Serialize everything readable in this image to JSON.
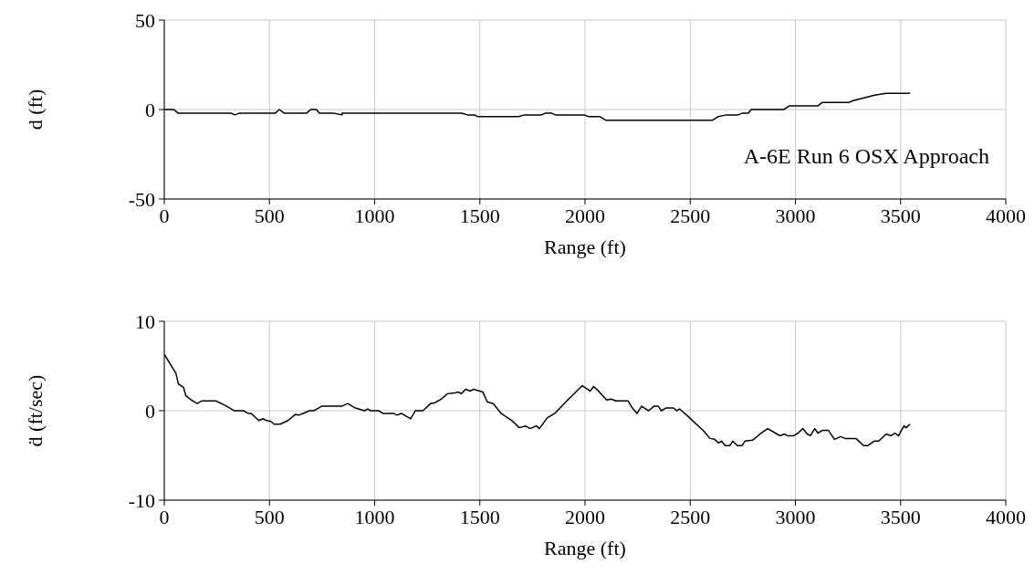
{
  "chart_data": [
    {
      "type": "line",
      "xlabel": "Range (ft)",
      "ylabel": "d (ft)",
      "annotations": [
        "A-6E Run 6 OSX Approach"
      ],
      "xlim": [
        0,
        4000
      ],
      "xticks": [
        0,
        500,
        1000,
        1500,
        2000,
        2500,
        3000,
        3500,
        4000
      ],
      "ylim": [
        -50,
        50
      ],
      "yticks": [
        -50,
        0,
        50
      ],
      "grid": true,
      "series": [
        {
          "color": "#000000",
          "x": [
            0,
            46,
            65,
            317,
            336,
            357,
            528,
            547,
            569,
            677,
            696,
            723,
            737,
            804,
            845,
            845,
            1414,
            1441,
            1476,
            1489,
            1684,
            1711,
            1793,
            1812,
            1839,
            1860,
            1996,
            2017,
            2072,
            2099,
            2605,
            2632,
            2673,
            2727,
            2749,
            2776,
            2790,
            2944,
            2971,
            3106,
            3128,
            3255,
            3274,
            3309,
            3377,
            3431,
            3545
          ],
          "values": [
            0,
            0,
            -2,
            -2,
            -3,
            -2,
            -2,
            0,
            -2,
            -2,
            0,
            0,
            -2,
            -2,
            -3,
            -2,
            -2,
            -3,
            -3,
            -4,
            -4,
            -3,
            -3,
            -2,
            -2,
            -3,
            -3,
            -4,
            -4,
            -6,
            -6,
            -4,
            -3,
            -3,
            -2,
            -2,
            0,
            0,
            2,
            2,
            4,
            4,
            5,
            6,
            8,
            9,
            9
          ]
        }
      ]
    },
    {
      "type": "line",
      "xlabel": "Range (ft)",
      "ylabel": "ḋ (ft/sec)",
      "xlim": [
        0,
        4000
      ],
      "xticks": [
        0,
        500,
        1000,
        1500,
        2000,
        2500,
        3000,
        3500,
        4000
      ],
      "ylim": [
        -10,
        10
      ],
      "yticks": [
        -10,
        0,
        10
      ],
      "grid": true,
      "series": [
        {
          "color": "#000000",
          "x": [
            0,
            55,
            67,
            92,
            102,
            128,
            157,
            179,
            245,
            289,
            332,
            376,
            398,
            413,
            449,
            470,
            486,
            507,
            522,
            551,
            588,
            624,
            639,
            660,
            690,
            711,
            748,
            843,
            872,
            908,
            952,
            967,
            981,
            1018,
            1040,
            1091,
            1105,
            1127,
            1171,
            1193,
            1229,
            1266,
            1287,
            1317,
            1346,
            1382,
            1397,
            1411,
            1433,
            1455,
            1470,
            1514,
            1535,
            1564,
            1601,
            1652,
            1688,
            1717,
            1739,
            1769,
            1783,
            1820,
            1856,
            1922,
            1987,
            2024,
            2041,
            2068,
            2103,
            2124,
            2146,
            2204,
            2225,
            2247,
            2269,
            2302,
            2327,
            2348,
            2363,
            2384,
            2421,
            2435,
            2449,
            2493,
            2565,
            2594,
            2616,
            2634,
            2649,
            2666,
            2688,
            2702,
            2724,
            2746,
            2760,
            2796,
            2832,
            2868,
            2905,
            2926,
            2948,
            2962,
            2991,
            3013,
            3035,
            3056,
            3071,
            3092,
            3107,
            3128,
            3157,
            3186,
            3215,
            3237,
            3288,
            3324,
            3345,
            3374,
            3396,
            3432,
            3454,
            3473,
            3490,
            3516,
            3526,
            3545
          ],
          "values": [
            6.3,
            4.2,
            3.0,
            2.6,
            1.7,
            1.2,
            0.8,
            1.1,
            1.1,
            0.6,
            0,
            0,
            -0.3,
            -0.3,
            -1.1,
            -0.9,
            -1.1,
            -1.2,
            -1.5,
            -1.5,
            -1.1,
            -0.4,
            -0.5,
            -0.3,
            0,
            0,
            0.5,
            0.5,
            0.8,
            0.3,
            0,
            0.2,
            0,
            0,
            -0.3,
            -0.3,
            -0.5,
            -0.3,
            -0.9,
            0,
            0,
            0.8,
            0.9,
            1.3,
            1.9,
            2.0,
            2.1,
            1.9,
            2.4,
            2.2,
            2.4,
            2.1,
            1.0,
            0.8,
            -0.3,
            -1.1,
            -1.9,
            -1.7,
            -2.0,
            -1.7,
            -2.0,
            -0.8,
            -0.3,
            1.3,
            2.8,
            2.2,
            2.7,
            2.1,
            1.2,
            1.3,
            1.1,
            1.1,
            0.3,
            -0.3,
            0.5,
            0,
            0.5,
            0.5,
            0,
            0.3,
            0.3,
            0,
            0.2,
            -0.7,
            -2.3,
            -3.1,
            -3.2,
            -3.6,
            -3.4,
            -3.9,
            -3.9,
            -3.4,
            -3.9,
            -3.9,
            -3.4,
            -3.3,
            -2.6,
            -2.0,
            -2.5,
            -2.8,
            -2.6,
            -2.8,
            -2.8,
            -2.5,
            -2.0,
            -2.6,
            -2.8,
            -2.0,
            -2.5,
            -2.2,
            -2.2,
            -3.2,
            -2.9,
            -3.1,
            -3.1,
            -3.9,
            -3.9,
            -3.4,
            -3.4,
            -2.6,
            -2.8,
            -2.5,
            -2.8,
            -1.7,
            -1.9,
            -1.5
          ]
        }
      ]
    }
  ]
}
